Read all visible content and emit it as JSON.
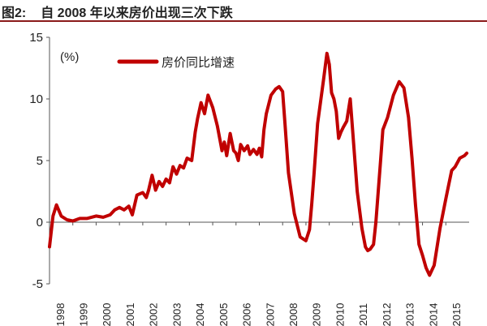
{
  "figure": {
    "label": "图2:",
    "title": "自 2008 年以来房价出现三次下跌"
  },
  "colors": {
    "series": "#c00000",
    "title_rule": "#8b1a1a",
    "axis": "#555555"
  },
  "chart_data": {
    "type": "line",
    "title": "自 2008 年以来房价出现三次下跌",
    "unit_label": "(%)",
    "xlabel": "",
    "ylabel": "",
    "ylim": [
      -5,
      15
    ],
    "yticks": [
      -5,
      0,
      5,
      10,
      15
    ],
    "xlim": [
      1998.0,
      2016.0
    ],
    "xticks": [
      "1998",
      "1999",
      "2000",
      "2001",
      "2002",
      "2003",
      "2004",
      "2005",
      "2006",
      "2007",
      "2008",
      "2009",
      "2010",
      "2011",
      "2012",
      "2013",
      "2014",
      "2015"
    ],
    "grid": false,
    "legend_position": "top-left",
    "series": [
      {
        "name": "房价同比增速",
        "x": [
          1998.0,
          1998.15,
          1998.3,
          1998.5,
          1998.75,
          1999.0,
          1999.3,
          1999.6,
          2000.0,
          2000.3,
          2000.6,
          2000.8,
          2001.0,
          2001.2,
          2001.4,
          2001.55,
          2001.75,
          2002.0,
          2002.15,
          2002.25,
          2002.4,
          2002.55,
          2002.7,
          2002.85,
          2003.0,
          2003.15,
          2003.3,
          2003.45,
          2003.6,
          2003.75,
          2003.9,
          2004.1,
          2004.25,
          2004.35,
          2004.5,
          2004.65,
          2004.8,
          2005.0,
          2005.2,
          2005.4,
          2005.5,
          2005.6,
          2005.75,
          2005.9,
          2006.0,
          2006.1,
          2006.2,
          2006.35,
          2006.5,
          2006.6,
          2006.75,
          2006.9,
          2007.0,
          2007.1,
          2007.2,
          2007.3,
          2007.5,
          2007.7,
          2007.85,
          2008.0,
          2008.1,
          2008.25,
          2008.5,
          2008.75,
          2009.0,
          2009.15,
          2009.25,
          2009.35,
          2009.5,
          2009.75,
          2009.9,
          2010.0,
          2010.1,
          2010.2,
          2010.3,
          2010.4,
          2010.5,
          2010.6,
          2010.75,
          2010.9,
          2011.0,
          2011.2,
          2011.4,
          2011.55,
          2011.65,
          2011.75,
          2011.9,
          2012.0,
          2012.1,
          2012.2,
          2012.3,
          2012.5,
          2012.75,
          2013.0,
          2013.2,
          2013.4,
          2013.55,
          2013.7,
          2013.85,
          2014.0,
          2014.15,
          2014.3,
          2014.5,
          2014.75,
          2015.0,
          2015.1,
          2015.25,
          2015.4,
          2015.6,
          2015.8,
          2015.9
        ],
        "values": [
          -2.0,
          0.5,
          1.4,
          0.5,
          0.2,
          0.1,
          0.3,
          0.3,
          0.5,
          0.4,
          0.6,
          1.0,
          1.2,
          1.0,
          1.3,
          0.6,
          2.2,
          2.4,
          2.0,
          2.6,
          3.8,
          2.6,
          3.3,
          2.9,
          3.5,
          3.2,
          4.5,
          3.9,
          4.6,
          4.4,
          5.2,
          5.0,
          7.3,
          8.4,
          9.7,
          8.8,
          10.3,
          9.3,
          7.8,
          5.8,
          6.5,
          5.4,
          7.2,
          5.8,
          5.6,
          5.0,
          6.3,
          5.8,
          6.2,
          5.5,
          5.9,
          5.5,
          6.0,
          5.3,
          7.5,
          8.8,
          10.3,
          10.8,
          11.0,
          10.6,
          8.0,
          4.0,
          0.7,
          -1.2,
          -1.5,
          -0.6,
          1.5,
          4.0,
          8.0,
          11.5,
          13.7,
          12.8,
          10.5,
          10.0,
          9.0,
          6.8,
          7.3,
          7.7,
          8.2,
          10.0,
          7.5,
          2.5,
          -0.5,
          -2.0,
          -2.3,
          -2.2,
          -1.8,
          0.0,
          2.5,
          5.0,
          7.5,
          8.5,
          10.3,
          11.4,
          10.9,
          8.5,
          5.2,
          1.4,
          -1.8,
          -2.7,
          -3.7,
          -4.3,
          -3.5,
          -0.5,
          1.9,
          2.8,
          4.2,
          4.5,
          5.2,
          5.4,
          5.6
        ]
      }
    ]
  }
}
